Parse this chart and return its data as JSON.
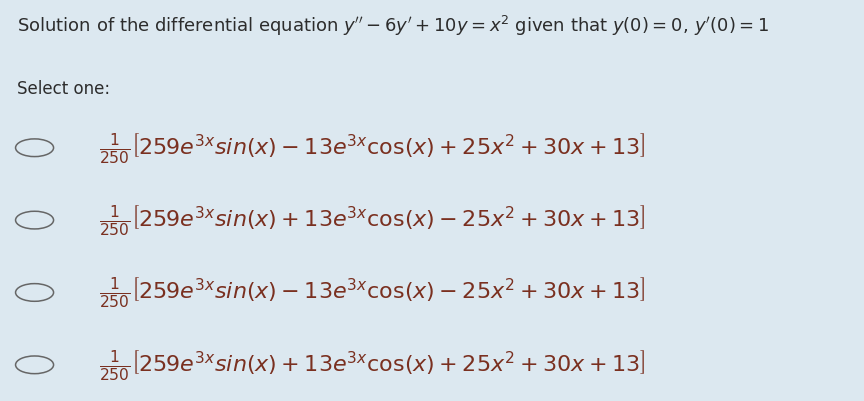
{
  "bg_color": "#dce8f0",
  "title_plain": "Solution of the differential equation ",
  "title_math": "$y^{\\prime\\prime} - 6y^{\\prime} + 10y = x^2$",
  "title_mid": " given that ",
  "title_math2": "$y(0) = 0, y^{\\prime}(0) = 1$",
  "select_one": "Select one:",
  "options": [
    "$\\frac{1}{250}\\left[259e^{3x}\\mathit{sin}(x) - 13e^{3x}\\cos(x) + 25x^2 + 30x + 13\\right]$",
    "$\\frac{1}{250}\\left[259e^{3x}\\mathit{sin}(x) + 13e^{3x}\\cos(x) - 25x^2 + 30x + 13\\right]$",
    "$\\frac{1}{250}\\left[259e^{3x}\\mathit{sin}(x) - 13e^{3x}\\cos(x) - 25x^2 + 30x + 13\\right]$",
    "$\\frac{1}{250}\\left[259e^{3x}\\mathit{sin}(x) + 13e^{3x}\\cos(x) + 25x^2 + 30x + 13\\right]$"
  ],
  "title_fontsize": 13,
  "option_fontsize": 16,
  "select_fontsize": 12,
  "title_color": "#2c2c2c",
  "option_color": "#7a3020",
  "select_color": "#2c2c2c",
  "circle_color": "#666666",
  "fig_width": 8.64,
  "fig_height": 4.02,
  "dpi": 100
}
